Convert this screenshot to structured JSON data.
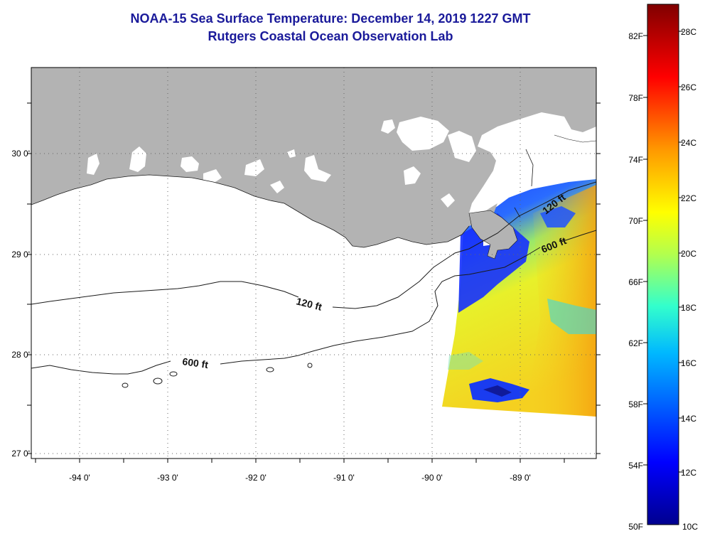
{
  "title": "NOAA-15 Sea Surface Temperature:  December 14, 2019 1227 GMT",
  "subtitle": "Rutgers Coastal Ocean Observation Lab",
  "map": {
    "lat_labels": [
      "30 0'",
      "29 0'",
      "28 0'",
      "27 0'"
    ],
    "lon_labels": [
      "-94 0'",
      "-93 0'",
      "-92 0'",
      "-91 0'",
      "-90 0'",
      "-89 0'"
    ],
    "contours": [
      {
        "label": "120 ft",
        "depth_ft": 120
      },
      {
        "label": "600 ft",
        "depth_ft": 600
      },
      {
        "label": "120 ft",
        "depth_ft": 120
      },
      {
        "label": "600 ft",
        "depth_ft": 600
      }
    ],
    "land_color": "#b3b3b3",
    "no_data_color": "#ffffff"
  },
  "colorbar": {
    "f_labels": [
      "82F",
      "78F",
      "74F",
      "70F",
      "66F",
      "62F",
      "58F",
      "54F",
      "50F"
    ],
    "c_labels": [
      "28C",
      "26C",
      "24C",
      "22C",
      "20C",
      "18C",
      "16C",
      "14C",
      "12C",
      "10C"
    ],
    "range_c": [
      10,
      29.5
    ],
    "colors": [
      "#00008f",
      "#0000ff",
      "#0080ff",
      "#00ffff",
      "#80ff80",
      "#ffff00",
      "#ff8000",
      "#ff0000",
      "#800000"
    ]
  }
}
